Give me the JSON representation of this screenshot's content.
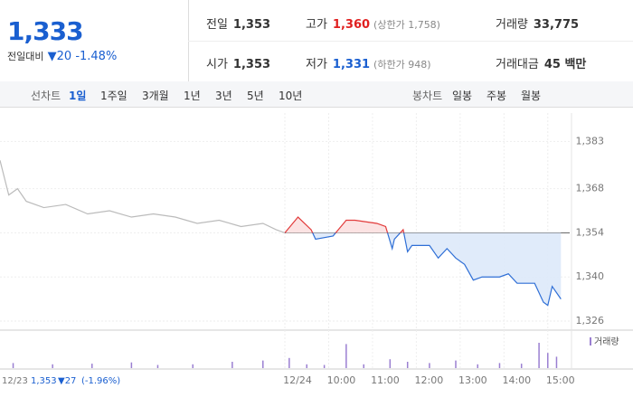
{
  "header": {
    "price": "1,333",
    "change_label": "전일대비",
    "change": "▼20",
    "change_rate": "-1.48%",
    "stats": [
      {
        "label": "전일",
        "value": "1,353",
        "note": ""
      },
      {
        "label": "고가",
        "value": "1,360",
        "note": "(상한가 1,758)"
      },
      {
        "label": "거래량",
        "value": "33,775",
        "note": ""
      },
      {
        "label": "시가",
        "value": "1,353",
        "note": ""
      },
      {
        "label": "저가",
        "value": "1,331",
        "note": "(하한가 948)"
      },
      {
        "label": "거래대금",
        "value": "45 백만",
        "note": ""
      }
    ]
  },
  "tabs": {
    "line_label": "선차트",
    "line": [
      "1일",
      "1주일",
      "3개월",
      "1년",
      "3년",
      "5년",
      "10년"
    ],
    "candle_label": "봉차트",
    "candle": [
      "일봉",
      "주봉",
      "월봉"
    ]
  },
  "footer": {
    "date": "12/23",
    "close": "1,353",
    "change": "▼27",
    "rate": "(-1.96%)"
  },
  "chart_data": {
    "type": "line",
    "ylim": [
      1324,
      1392
    ],
    "yticks": [
      {
        "value": 1383,
        "label": "1,383"
      },
      {
        "value": 1368,
        "label": "1,368"
      },
      {
        "value": 1354,
        "label": "1,354"
      },
      {
        "value": 1340,
        "label": "1,340"
      },
      {
        "value": 1326,
        "label": "1,326"
      }
    ],
    "xlim": [
      0,
      13
    ],
    "xticks": [
      {
        "value": 6.5,
        "label": "12/24"
      },
      {
        "value": 7.5,
        "label": "10:00"
      },
      {
        "value": 8.5,
        "label": "11:00"
      },
      {
        "value": 9.5,
        "label": "12:00"
      },
      {
        "value": 10.5,
        "label": "13:00"
      },
      {
        "value": 11.5,
        "label": "14:00"
      },
      {
        "value": 12.5,
        "label": "15:00"
      }
    ],
    "baseline": 1354,
    "grid": true,
    "series": [
      {
        "color": "#bbbbbb",
        "x": [
          0,
          0.2,
          0.4,
          0.6,
          1,
          1.5,
          2,
          2.5,
          3,
          3.5,
          4,
          4.5,
          5,
          5.5,
          6,
          6.3,
          6.5
        ],
        "values": [
          1377,
          1366,
          1368,
          1364,
          1362,
          1363,
          1360,
          1361,
          1359,
          1360,
          1359,
          1357,
          1358,
          1356,
          1357,
          1355,
          1354
        ]
      },
      {
        "color": "#e23b3b",
        "color_below": "#2f6fd6",
        "x": [
          6.5,
          6.8,
          7.1,
          7.2,
          7.6,
          7.9,
          8.1,
          8.6,
          8.8,
          8.95,
          9.0,
          9.2,
          9.3,
          9.4,
          9.8,
          10.0,
          10.2,
          10.4,
          10.6,
          10.8,
          11.0,
          11.4,
          11.6,
          11.8,
          12.2,
          12.4,
          12.5,
          12.6,
          12.8
        ],
        "values": [
          1354,
          1359,
          1355,
          1352,
          1353,
          1358,
          1358,
          1357,
          1356,
          1349,
          1352,
          1355,
          1348,
          1350,
          1350,
          1346,
          1349,
          1346,
          1344,
          1339,
          1340,
          1340,
          1341,
          1338,
          1338,
          1332,
          1331,
          1337,
          1333
        ]
      }
    ],
    "volume": {
      "name": "거래량",
      "color": "#9a7fd1",
      "ylim": [
        0,
        2500
      ],
      "x": [
        0.3,
        1.2,
        2.1,
        3.0,
        3.6,
        4.4,
        5.3,
        6.0,
        6.6,
        7.0,
        7.4,
        7.9,
        8.3,
        8.9,
        9.3,
        9.8,
        10.4,
        10.9,
        11.4,
        11.9,
        12.3,
        12.5,
        12.7
      ],
      "values": [
        400,
        300,
        350,
        450,
        250,
        300,
        500,
        600,
        800,
        300,
        250,
        1900,
        300,
        700,
        500,
        400,
        600,
        300,
        400,
        350,
        2000,
        1200,
        900
      ]
    }
  }
}
